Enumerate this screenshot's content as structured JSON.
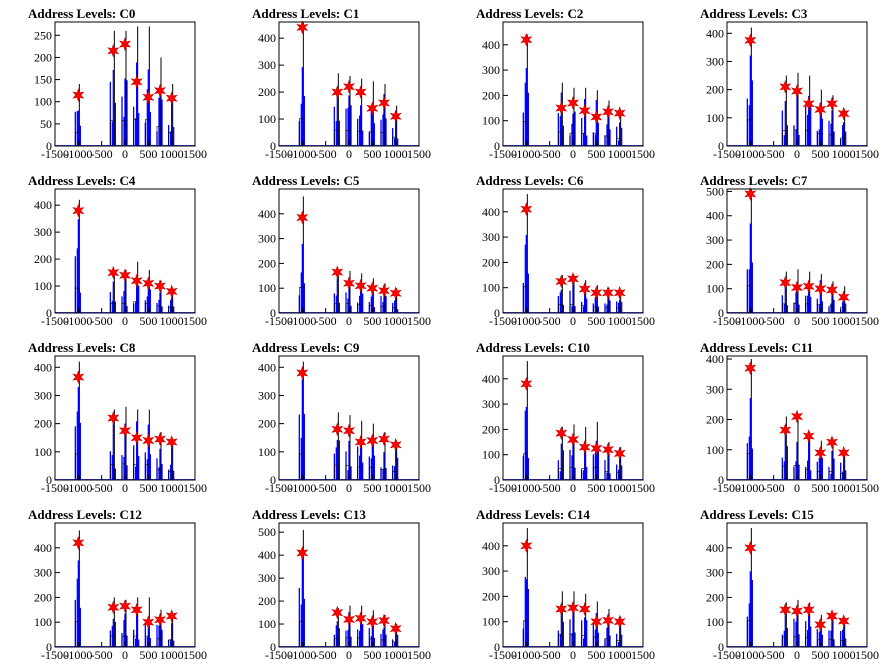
{
  "colors": {
    "data": "#0000ff",
    "fit": "#000000",
    "marker": "#ff0000",
    "marker_edge": "#cc0000",
    "axis": "#000000"
  },
  "chart_data": [
    {
      "type": "bar",
      "title": "Address Levels: C0",
      "xlim": [
        -1500,
        1500
      ],
      "ylim": [
        0,
        280
      ],
      "xticks": [
        "-1500",
        "-1000",
        "-500",
        "0",
        "500",
        "1000",
        "1500"
      ],
      "yticks": [
        "0",
        "50",
        "100",
        "150",
        "200",
        "250"
      ],
      "peaks_x": [
        -1000,
        -250,
        0,
        250,
        500,
        750,
        1000
      ],
      "peak_hist": [
        140,
        260,
        260,
        270,
        270,
        200,
        140
      ],
      "markers": [
        115,
        215,
        230,
        145,
        110,
        125,
        108
      ]
    },
    {
      "type": "bar",
      "title": "Address Levels: C1",
      "xlim": [
        -1500,
        1500
      ],
      "ylim": [
        0,
        460
      ],
      "xticks": [
        "-1500",
        "-1000",
        "-500",
        "0",
        "500",
        "1000",
        "1500"
      ],
      "yticks": [
        "0",
        "100",
        "200",
        "300",
        "400"
      ],
      "peaks_x": [
        -1000,
        -250,
        0,
        250,
        500,
        750,
        1000
      ],
      "peak_hist": [
        460,
        270,
        260,
        250,
        240,
        230,
        150
      ],
      "markers": [
        440,
        200,
        220,
        200,
        140,
        160,
        110
      ]
    },
    {
      "type": "bar",
      "title": "Address Levels: C2",
      "xlim": [
        -1500,
        1500
      ],
      "ylim": [
        0,
        490
      ],
      "xticks": [
        "-1500",
        "-1000",
        "-500",
        "0",
        "500",
        "1000",
        "1500"
      ],
      "yticks": [
        "0",
        "100",
        "200",
        "300",
        "400"
      ],
      "peaks_x": [
        -1000,
        -250,
        0,
        250,
        500,
        750,
        1000
      ],
      "peak_hist": [
        440,
        250,
        230,
        230,
        220,
        180,
        140
      ],
      "markers": [
        420,
        150,
        170,
        140,
        115,
        135,
        130
      ]
    },
    {
      "type": "bar",
      "title": "Address Levels: C3",
      "xlim": [
        -1500,
        1500
      ],
      "ylim": [
        0,
        440
      ],
      "xticks": [
        "-1500",
        "-1000",
        "-500",
        "0",
        "500",
        "1000",
        "1500"
      ],
      "yticks": [
        "0",
        "100",
        "200",
        "300",
        "400"
      ],
      "peaks_x": [
        -1000,
        -250,
        0,
        250,
        500,
        750,
        1000
      ],
      "peak_hist": [
        420,
        250,
        260,
        250,
        200,
        180,
        130
      ],
      "markers": [
        375,
        210,
        195,
        150,
        130,
        150,
        115
      ]
    },
    {
      "type": "bar",
      "title": "Address Levels: C4",
      "xlim": [
        -1500,
        1500
      ],
      "ylim": [
        0,
        460
      ],
      "xticks": [
        "-1500",
        "-1000",
        "-500",
        "0",
        "500",
        "1000",
        "1500"
      ],
      "yticks": [
        "0",
        "100",
        "200",
        "300",
        "400"
      ],
      "peaks_x": [
        -1000,
        -250,
        0,
        250,
        500,
        750,
        1000
      ],
      "peak_hist": [
        420,
        160,
        160,
        190,
        160,
        120,
        90
      ],
      "markers": [
        380,
        150,
        140,
        120,
        110,
        100,
        80
      ]
    },
    {
      "type": "bar",
      "title": "Address Levels: C5",
      "xlim": [
        -1500,
        1500
      ],
      "ylim": [
        0,
        500
      ],
      "xticks": [
        "-1500",
        "-1000",
        "-500",
        "0",
        "500",
        "1000",
        "1500"
      ],
      "yticks": [
        "0",
        "100",
        "200",
        "300",
        "400"
      ],
      "peaks_x": [
        -1000,
        -250,
        0,
        250,
        500,
        750,
        1000
      ],
      "peak_hist": [
        470,
        170,
        170,
        160,
        140,
        120,
        100
      ],
      "markers": [
        385,
        165,
        120,
        110,
        100,
        90,
        80
      ]
    },
    {
      "type": "bar",
      "title": "Address Levels: C6",
      "xlim": [
        -1500,
        1500
      ],
      "ylim": [
        0,
        490
      ],
      "xticks": [
        "-1500",
        "-1000",
        "-500",
        "0",
        "500",
        "1000",
        "1500"
      ],
      "yticks": [
        "0",
        "100",
        "200",
        "300",
        "400"
      ],
      "peaks_x": [
        -1000,
        -250,
        0,
        250,
        500,
        750,
        1000
      ],
      "peak_hist": [
        470,
        150,
        150,
        130,
        110,
        100,
        90
      ],
      "markers": [
        410,
        125,
        135,
        95,
        80,
        80,
        80
      ]
    },
    {
      "type": "bar",
      "title": "Address Levels: C7",
      "xlim": [
        -1500,
        1500
      ],
      "ylim": [
        0,
        510
      ],
      "xticks": [
        "-1500",
        "-1000",
        "-500",
        "0",
        "500",
        "1000",
        "1500"
      ],
      "yticks": [
        "0",
        "100",
        "200",
        "300",
        "400",
        "500"
      ],
      "peaks_x": [
        -1000,
        -250,
        0,
        250,
        500,
        750,
        1000
      ],
      "peak_hist": [
        510,
        170,
        180,
        170,
        160,
        130,
        110
      ],
      "markers": [
        490,
        125,
        105,
        110,
        100,
        95,
        65
      ]
    },
    {
      "type": "bar",
      "title": "Address Levels: C8",
      "xlim": [
        -1500,
        1500
      ],
      "ylim": [
        0,
        440
      ],
      "xticks": [
        "-1500",
        "-1000",
        "-500",
        "0",
        "500",
        "1000",
        "1500"
      ],
      "yticks": [
        "0",
        "100",
        "200",
        "300",
        "400"
      ],
      "peaks_x": [
        -1000,
        -250,
        0,
        250,
        500,
        750,
        1000
      ],
      "peak_hist": [
        420,
        250,
        260,
        250,
        250,
        170,
        140
      ],
      "markers": [
        365,
        220,
        175,
        150,
        140,
        145,
        135
      ]
    },
    {
      "type": "bar",
      "title": "Address Levels: C9",
      "xlim": [
        -1500,
        1500
      ],
      "ylim": [
        0,
        440
      ],
      "xticks": [
        "-1500",
        "-1000",
        "-500",
        "0",
        "500",
        "1000",
        "1500"
      ],
      "yticks": [
        "0",
        "100",
        "200",
        "300",
        "400"
      ],
      "peaks_x": [
        -1000,
        -250,
        0,
        250,
        500,
        750,
        1000
      ],
      "peak_hist": [
        420,
        240,
        230,
        210,
        200,
        170,
        140
      ],
      "markers": [
        380,
        180,
        175,
        135,
        140,
        145,
        125
      ]
    },
    {
      "type": "bar",
      "title": "Address Levels: C10",
      "xlim": [
        -1500,
        1500
      ],
      "ylim": [
        0,
        490
      ],
      "xticks": [
        "-1500",
        "-1000",
        "-500",
        "0",
        "500",
        "1000",
        "1500"
      ],
      "yticks": [
        "0",
        "100",
        "200",
        "300",
        "400"
      ],
      "peaks_x": [
        -1000,
        -250,
        0,
        250,
        500,
        750,
        1000
      ],
      "peak_hist": [
        470,
        210,
        220,
        210,
        230,
        150,
        130
      ],
      "markers": [
        380,
        185,
        160,
        130,
        125,
        120,
        105
      ]
    },
    {
      "type": "bar",
      "title": "Address Levels: C11",
      "xlim": [
        -1500,
        1500
      ],
      "ylim": [
        0,
        410
      ],
      "xticks": [
        "-1500",
        "-1000",
        "-500",
        "0",
        "500",
        "1000",
        "1500"
      ],
      "yticks": [
        "0",
        "100",
        "200",
        "300",
        "400"
      ],
      "peaks_x": [
        -1000,
        -250,
        0,
        250,
        500,
        750,
        1000
      ],
      "peak_hist": [
        400,
        210,
        220,
        160,
        130,
        130,
        100
      ],
      "markers": [
        370,
        165,
        210,
        145,
        90,
        125,
        90
      ]
    },
    {
      "type": "bar",
      "title": "Address Levels: C12",
      "xlim": [
        -1500,
        1500
      ],
      "ylim": [
        0,
        500
      ],
      "xticks": [
        "-1500",
        "-1000",
        "-500",
        "0",
        "500",
        "1000",
        "1500"
      ],
      "yticks": [
        "0",
        "100",
        "200",
        "300",
        "400"
      ],
      "peaks_x": [
        -1000,
        -250,
        0,
        250,
        500,
        750,
        1000
      ],
      "peak_hist": [
        470,
        200,
        190,
        200,
        200,
        150,
        130
      ],
      "markers": [
        420,
        160,
        165,
        150,
        100,
        110,
        125
      ]
    },
    {
      "type": "bar",
      "title": "Address Levels: C13",
      "xlim": [
        -1500,
        1500
      ],
      "ylim": [
        0,
        540
      ],
      "xticks": [
        "-1500",
        "-1000",
        "-500",
        "0",
        "500",
        "1000",
        "1500"
      ],
      "yticks": [
        "0",
        "100",
        "200",
        "300",
        "400",
        "500"
      ],
      "peaks_x": [
        -1000,
        -250,
        0,
        250,
        500,
        750,
        1000
      ],
      "peak_hist": [
        510,
        170,
        180,
        180,
        160,
        140,
        100
      ],
      "markers": [
        410,
        150,
        120,
        125,
        110,
        115,
        80
      ]
    },
    {
      "type": "bar",
      "title": "Address Levels: C14",
      "xlim": [
        -1500,
        1500
      ],
      "ylim": [
        0,
        490
      ],
      "xticks": [
        "-1500",
        "-1000",
        "-500",
        "0",
        "500",
        "1000",
        "1500"
      ],
      "yticks": [
        "0",
        "100",
        "200",
        "300",
        "400"
      ],
      "peaks_x": [
        -1000,
        -250,
        0,
        250,
        500,
        750,
        1000
      ],
      "peak_hist": [
        470,
        220,
        220,
        210,
        180,
        150,
        120
      ],
      "markers": [
        400,
        150,
        155,
        150,
        100,
        105,
        100
      ]
    },
    {
      "type": "bar",
      "title": "Address Levels: C15",
      "xlim": [
        -1500,
        1500
      ],
      "ylim": [
        0,
        500
      ],
      "xticks": [
        "-1500",
        "-1000",
        "-500",
        "0",
        "500",
        "1000",
        "1500"
      ],
      "yticks": [
        "0",
        "100",
        "200",
        "300",
        "400"
      ],
      "peaks_x": [
        -1000,
        -250,
        0,
        250,
        500,
        750,
        1000
      ],
      "peak_hist": [
        480,
        180,
        190,
        180,
        130,
        140,
        120
      ],
      "markers": [
        400,
        150,
        145,
        150,
        90,
        125,
        105
      ]
    }
  ]
}
